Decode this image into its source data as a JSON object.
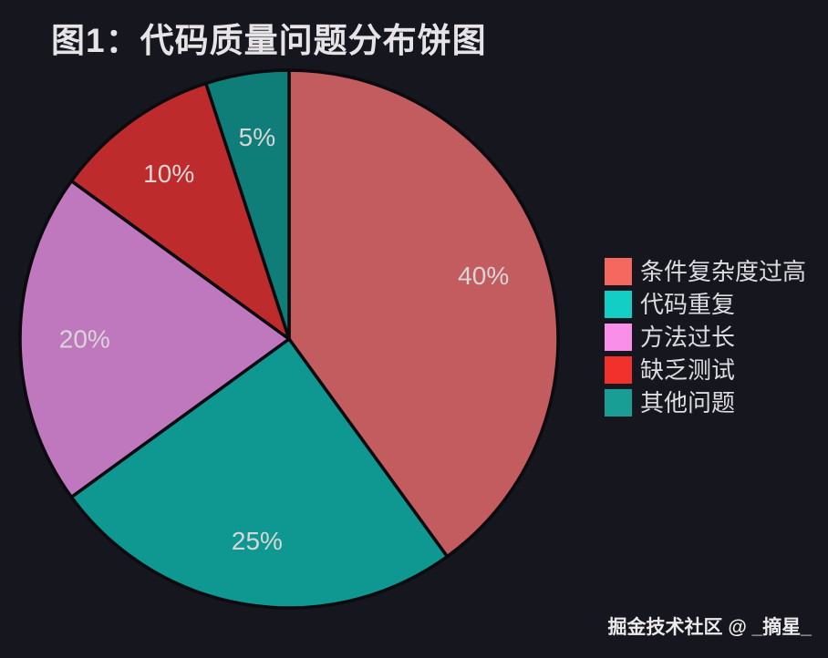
{
  "title": "图1：代码质量问题分布饼图",
  "footer": "掘金技术社区 @ _摘星_",
  "colors": {
    "background": "#16161e",
    "title_text": "#e6e4e6",
    "pct_label_text": "#d9d6d6",
    "legend_text": "#dcdce0",
    "wedge_stroke": "#0a0a0f"
  },
  "chart_data": {
    "type": "pie",
    "title": "图1：代码质量问题分布饼图",
    "start_angle_deg": 0,
    "direction": "clockwise",
    "legend_position": "right",
    "label_radius_ratio": 0.76,
    "slices": [
      {
        "label": "条件复杂度过高",
        "value": 40,
        "pct_label": "40%",
        "legend_color": "#f5685f",
        "slice_color": "#c25c5f"
      },
      {
        "label": "代码重复",
        "value": 25,
        "pct_label": "25%",
        "legend_color": "#13cec4",
        "slice_color": "#0f9791"
      },
      {
        "label": "方法过长",
        "value": 20,
        "pct_label": "20%",
        "legend_color": "#f98fe8",
        "slice_color": "#bf77bd"
      },
      {
        "label": "缺乏测试",
        "value": 10,
        "pct_label": "10%",
        "legend_color": "#f2312c",
        "slice_color": "#be2b2c"
      },
      {
        "label": "其他问题",
        "value": 5,
        "pct_label": "5%",
        "legend_color": "#189e94",
        "slice_color": "#0f7d78"
      }
    ]
  }
}
